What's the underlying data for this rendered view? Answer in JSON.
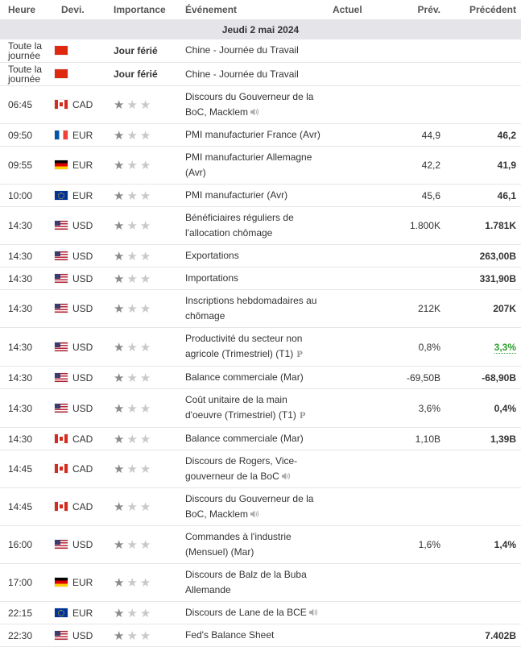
{
  "header": {
    "time": "Heure",
    "currency": "Devi.",
    "importance": "Importance",
    "event": "Événement",
    "actual": "Actuel",
    "forecast": "Prév.",
    "previous": "Précédent"
  },
  "day_label": "Jeudi 2 mai 2024",
  "events": [
    {
      "time": "Toute la journée",
      "time_lines": [
        "Toute la",
        "journée"
      ],
      "flag": "cn",
      "currency": "",
      "stars": 0,
      "importance_text": "Jour férié",
      "event": "Chine - Journée du Travail",
      "speech": false,
      "prelim": false,
      "actual": "",
      "forecast": "",
      "previous": "",
      "prev_color": ""
    },
    {
      "time": "Toute la journée",
      "time_lines": [
        "Toute la",
        "journée"
      ],
      "flag": "cn",
      "currency": "",
      "stars": 0,
      "importance_text": "Jour férié",
      "event": "Chine - Journée du Travail",
      "speech": false,
      "prelim": false,
      "actual": "",
      "forecast": "",
      "previous": "",
      "prev_color": ""
    },
    {
      "time": "06:45",
      "flag": "ca",
      "currency": "CAD",
      "stars": 1,
      "event": "Discours du Gouverneur de la BoC, Macklem",
      "speech": true,
      "prelim": false,
      "actual": "",
      "forecast": "",
      "previous": "",
      "prev_color": ""
    },
    {
      "time": "09:50",
      "flag": "fr",
      "currency": "EUR",
      "stars": 1,
      "event": "PMI manufacturier France (Avr)",
      "speech": false,
      "prelim": false,
      "actual": "",
      "forecast": "44,9",
      "previous": "46,2",
      "prev_color": ""
    },
    {
      "time": "09:55",
      "flag": "de",
      "currency": "EUR",
      "stars": 1,
      "event": "PMI manufacturier Allemagne (Avr)",
      "speech": false,
      "prelim": false,
      "actual": "",
      "forecast": "42,2",
      "previous": "41,9",
      "prev_color": ""
    },
    {
      "time": "10:00",
      "flag": "eu",
      "currency": "EUR",
      "stars": 1,
      "event": "PMI manufacturier (Avr)",
      "speech": false,
      "prelim": false,
      "actual": "",
      "forecast": "45,6",
      "previous": "46,1",
      "prev_color": ""
    },
    {
      "time": "14:30",
      "flag": "us",
      "currency": "USD",
      "stars": 1,
      "event": "Bénéficiaires réguliers de l'allocation chômage",
      "speech": false,
      "prelim": false,
      "actual": "",
      "forecast": "1.800K",
      "previous": "1.781K",
      "prev_color": ""
    },
    {
      "time": "14:30",
      "flag": "us",
      "currency": "USD",
      "stars": 1,
      "event": "Exportations",
      "speech": false,
      "prelim": false,
      "actual": "",
      "forecast": "",
      "previous": "263,00B",
      "prev_color": ""
    },
    {
      "time": "14:30",
      "flag": "us",
      "currency": "USD",
      "stars": 1,
      "event": "Importations",
      "speech": false,
      "prelim": false,
      "actual": "",
      "forecast": "",
      "previous": "331,90B",
      "prev_color": ""
    },
    {
      "time": "14:30",
      "flag": "us",
      "currency": "USD",
      "stars": 1,
      "event": "Inscriptions hebdomadaires au chômage",
      "speech": false,
      "prelim": false,
      "actual": "",
      "forecast": "212K",
      "previous": "207K",
      "prev_color": ""
    },
    {
      "time": "14:30",
      "flag": "us",
      "currency": "USD",
      "stars": 1,
      "event": "Productivité du secteur non agricole (Trimestriel) (T1)",
      "speech": false,
      "prelim": true,
      "actual": "",
      "forecast": "0,8%",
      "previous": "3,3%",
      "prev_color": "green"
    },
    {
      "time": "14:30",
      "flag": "us",
      "currency": "USD",
      "stars": 1,
      "event": "Balance commerciale (Mar)",
      "speech": false,
      "prelim": false,
      "actual": "",
      "forecast": "-69,50B",
      "previous": "-68,90B",
      "prev_color": ""
    },
    {
      "time": "14:30",
      "flag": "us",
      "currency": "USD",
      "stars": 1,
      "event": "Coût unitaire de la main d'oeuvre (Trimestriel) (T1)",
      "speech": false,
      "prelim": true,
      "actual": "",
      "forecast": "3,6%",
      "previous": "0,4%",
      "prev_color": ""
    },
    {
      "time": "14:30",
      "flag": "ca",
      "currency": "CAD",
      "stars": 1,
      "event": "Balance commerciale (Mar)",
      "speech": false,
      "prelim": false,
      "actual": "",
      "forecast": "1,10B",
      "previous": "1,39B",
      "prev_color": ""
    },
    {
      "time": "14:45",
      "flag": "ca",
      "currency": "CAD",
      "stars": 1,
      "event": "Discours de Rogers, Vice-gouverneur de la BoC",
      "speech": true,
      "prelim": false,
      "actual": "",
      "forecast": "",
      "previous": "",
      "prev_color": ""
    },
    {
      "time": "14:45",
      "flag": "ca",
      "currency": "CAD",
      "stars": 1,
      "event": "Discours du Gouverneur de la BoC, Macklem",
      "speech": true,
      "prelim": false,
      "actual": "",
      "forecast": "",
      "previous": "",
      "prev_color": ""
    },
    {
      "time": "16:00",
      "flag": "us",
      "currency": "USD",
      "stars": 1,
      "event": "Commandes à l'industrie (Mensuel) (Mar)",
      "speech": false,
      "prelim": false,
      "actual": "",
      "forecast": "1,6%",
      "previous": "1,4%",
      "prev_color": ""
    },
    {
      "time": "17:00",
      "flag": "de",
      "currency": "EUR",
      "stars": 1,
      "event": "Discours de Balz de la Buba Allemande",
      "speech": false,
      "prelim": false,
      "actual": "",
      "forecast": "",
      "previous": "",
      "prev_color": ""
    },
    {
      "time": "22:15",
      "flag": "eu",
      "currency": "EUR",
      "stars": 1,
      "event": "Discours de Lane de la BCE",
      "speech": true,
      "prelim": false,
      "actual": "",
      "forecast": "",
      "previous": "",
      "prev_color": ""
    },
    {
      "time": "22:30",
      "flag": "us",
      "currency": "USD",
      "stars": 1,
      "event": "Fed's Balance Sheet",
      "speech": false,
      "prelim": false,
      "actual": "",
      "forecast": "",
      "previous": "7.402B",
      "prev_color": ""
    }
  ]
}
